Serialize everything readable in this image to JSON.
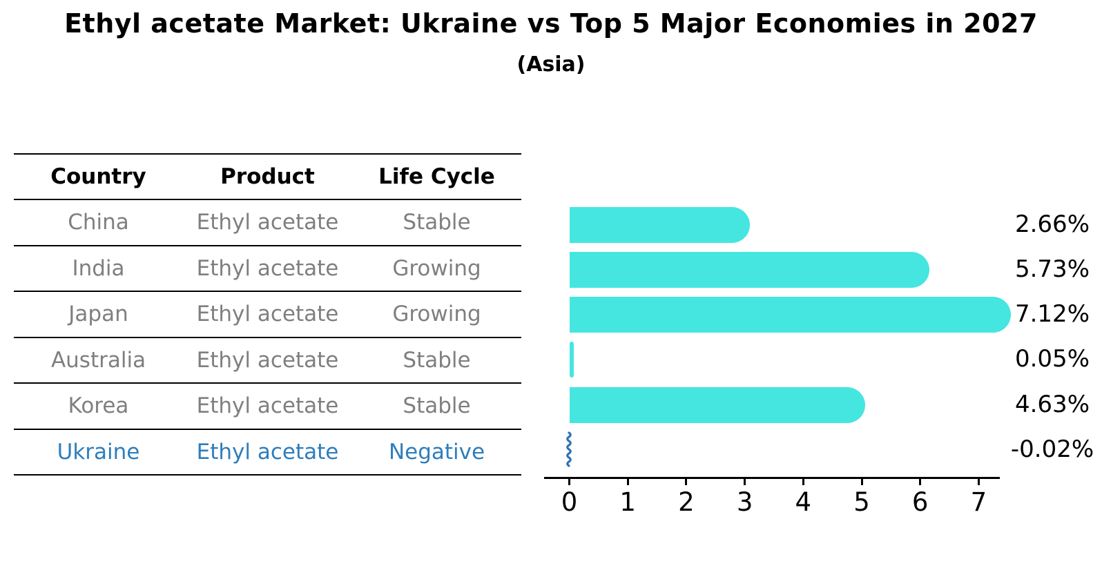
{
  "header": {
    "title": "Ethyl acetate Market: Ukraine vs Top 5 Major Economies in 2027",
    "subtitle": "(Asia)"
  },
  "table": {
    "columns": [
      "Country",
      "Product",
      "Life Cycle"
    ],
    "rows": [
      {
        "country": "China",
        "product": "Ethyl acetate",
        "life_cycle": "Stable",
        "highlight": false
      },
      {
        "country": "India",
        "product": "Ethyl acetate",
        "life_cycle": "Growing",
        "highlight": false
      },
      {
        "country": "Japan",
        "product": "Ethyl acetate",
        "life_cycle": "Growing",
        "highlight": false
      },
      {
        "country": "Australia",
        "product": "Ethyl acetate",
        "life_cycle": "Stable",
        "highlight": false
      },
      {
        "country": "Korea",
        "product": "Ethyl acetate",
        "life_cycle": "Stable",
        "highlight": false
      },
      {
        "country": "Ukraine",
        "product": "Ethyl acetate",
        "life_cycle": "Negative",
        "highlight": true
      }
    ],
    "highlight_color": "#2e7ebc",
    "text_color": "#7f7f7f"
  },
  "chart_data": {
    "type": "bar",
    "orientation": "horizontal",
    "title": "Ethyl acetate Market: Ukraine vs Top 5 Major Economies in 2027",
    "subtitle": "(Asia)",
    "categories": [
      "China",
      "India",
      "Japan",
      "Australia",
      "Korea",
      "Ukraine"
    ],
    "values": [
      2.66,
      5.73,
      7.12,
      0.05,
      4.63,
      -0.02
    ],
    "value_labels": [
      "2.66%",
      "5.73%",
      "7.12%",
      "0.05%",
      "4.63%",
      "-0.02%"
    ],
    "x_ticks": [
      "0",
      "1",
      "2",
      "3",
      "4",
      "5",
      "6",
      "7"
    ],
    "xlim": [
      0,
      7.5
    ],
    "unit": "%",
    "bar_color": "#45e6e0",
    "negative_bar_color": "#2f72b4",
    "grid": false,
    "legend": false
  }
}
